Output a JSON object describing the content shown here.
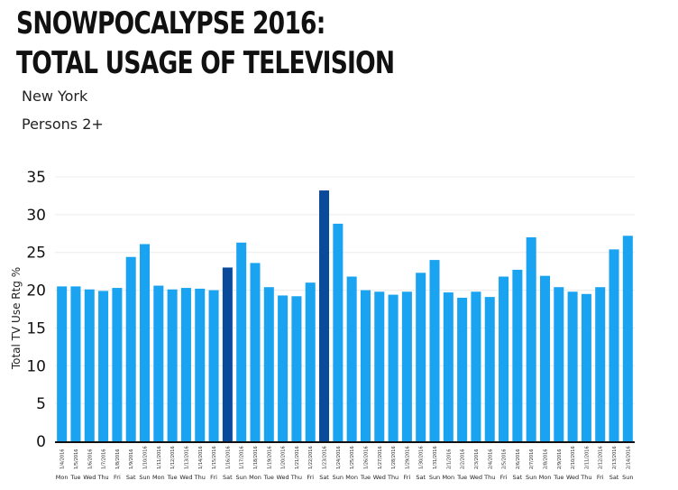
{
  "title": "SNOWPOCALYPSE 2016: TOTAL USAGE OF TELEVISION",
  "subtitles": [
    "New York",
    "Persons 2+"
  ],
  "chart_data": {
    "type": "bar",
    "ylabel": "Total TV Use Rtg %",
    "ylim": [
      0,
      35
    ],
    "yticks": [
      0,
      5,
      10,
      15,
      20,
      25,
      30,
      35
    ],
    "grid": true,
    "categories": [
      "1/4/2016",
      "1/5/2016",
      "1/6/2016",
      "1/7/2016",
      "1/8/2016",
      "1/9/2016",
      "1/10/2016",
      "1/11/2016",
      "1/12/2016",
      "1/13/2016",
      "1/14/2016",
      "1/15/2016",
      "1/16/2016",
      "1/17/2016",
      "1/18/2016",
      "1/19/2016",
      "1/20/2016",
      "1/21/2016",
      "1/22/2016",
      "1/23/2016",
      "1/24/2016",
      "1/25/2016",
      "1/26/2016",
      "1/27/2016",
      "1/28/2016",
      "1/29/2016",
      "1/30/2016",
      "1/31/2016",
      "2/1/2016",
      "2/2/2016",
      "2/3/2016",
      "2/4/2016",
      "2/5/2016",
      "2/6/2016",
      "2/7/2016",
      "2/8/2016",
      "2/9/2016",
      "2/10/2016",
      "2/11/2016",
      "2/12/2016",
      "2/13/2016",
      "2/14/2016"
    ],
    "day_labels": [
      "Mon",
      "Tue",
      "Wed",
      "Thu",
      "Fri",
      "Sat",
      "Sun",
      "Mon",
      "Tue",
      "Wed",
      "Thu",
      "Fri",
      "Sat",
      "Sun",
      "Mon",
      "Tue",
      "Wed",
      "Thu",
      "Fri",
      "Sat",
      "Sun",
      "Mon",
      "Tue",
      "Wed",
      "Thu",
      "Fri",
      "Sat",
      "Sun",
      "Mon",
      "Tue",
      "Wed",
      "Thu",
      "Fri",
      "Sat",
      "Sun",
      "Mon",
      "Tue",
      "Wed",
      "Thu",
      "Fri",
      "Sat",
      "Sun"
    ],
    "values": [
      20.5,
      20.5,
      20.1,
      19.9,
      20.3,
      24.4,
      26.1,
      20.6,
      20.1,
      20.3,
      20.2,
      20.0,
      23.0,
      26.3,
      23.6,
      20.4,
      19.3,
      19.2,
      21.0,
      33.2,
      28.8,
      21.8,
      20.0,
      19.8,
      19.4,
      19.8,
      22.3,
      24.0,
      19.7,
      19.0,
      19.8,
      19.1,
      21.8,
      22.7,
      27.0,
      21.9,
      20.4,
      19.8,
      19.5,
      20.4,
      25.4,
      27.2
    ],
    "highlighted": [
      "1/16/2016",
      "1/23/2016"
    ],
    "colors": {
      "bar": "#1aa3f0",
      "highlight": "#0a4a9b",
      "grid": "#ececec",
      "axis": "#111111"
    }
  }
}
